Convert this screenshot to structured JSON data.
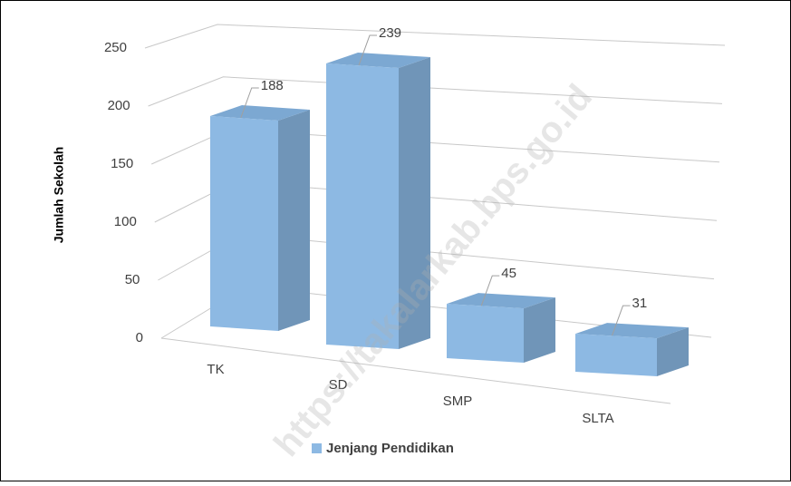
{
  "chart_data": {
    "type": "bar3d",
    "y_label": "Jumlah Sekolah",
    "categories": [
      "TK",
      "SD",
      "SMP",
      "SLTA"
    ],
    "series": [
      {
        "name": "Jenjang Pendidikan",
        "color": "#8db9e3",
        "values": [
          188,
          239,
          45,
          31
        ]
      }
    ],
    "ylim": [
      0,
      250
    ],
    "yticks": [
      0,
      50,
      100,
      150,
      200,
      250
    ],
    "grid": true,
    "watermark": "https://takalarkab.bps.go.id"
  }
}
